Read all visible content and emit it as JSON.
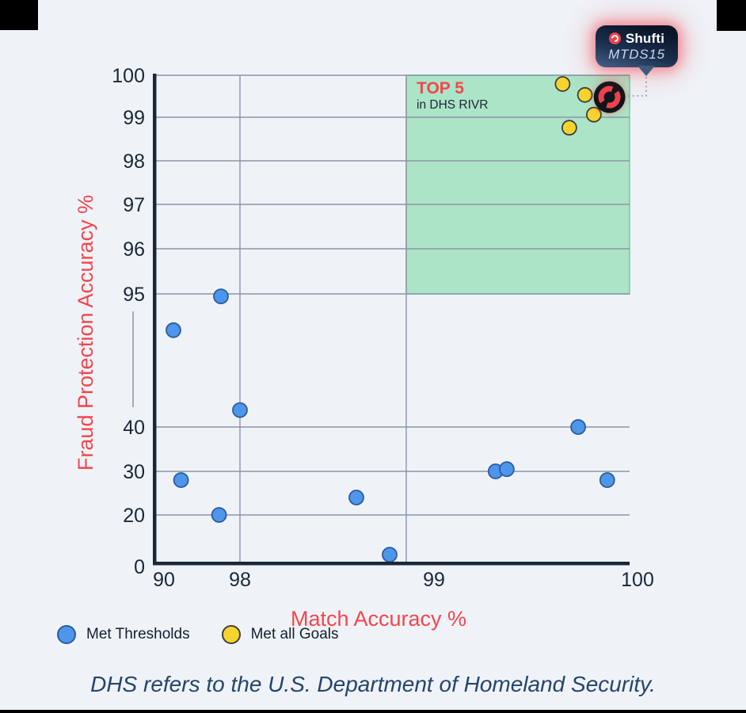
{
  "page": {
    "footnote": "DHS refers to the U.S. Department of Homeland Security."
  },
  "callout": {
    "brand": "Shufti",
    "model": "MTDS15"
  },
  "legend": {
    "items": [
      {
        "label": "Met Thresholds",
        "color": "#4e96ea"
      },
      {
        "label": "Met all Goals",
        "color": "#f6d42e"
      }
    ]
  },
  "colors": {
    "background": "#eff3f8",
    "axis_navy": "#1b2739",
    "accent_red": "#f4464b",
    "zone_green": "#ace4c7",
    "gridline_gray": "#8b95a7",
    "blue_dot": "#4e96ea",
    "yellow_dot": "#f6d42e",
    "marker_black": "#10131b",
    "marker_red": "#f0424d"
  },
  "chart_data": {
    "type": "scatter",
    "title": "",
    "xlabel": "Match Accuracy %",
    "ylabel": "Fraud Protection Accuracy %",
    "x_tick_labels": [
      "90",
      "98",
      "99",
      "100"
    ],
    "y_tick_labels": [
      "100",
      "99",
      "98",
      "97",
      "96",
      "95",
      "40",
      "30",
      "20",
      "0"
    ],
    "x_axis_break": true,
    "y_axis_break": true,
    "grid": true,
    "highlight_zone": {
      "title": "TOP 5",
      "subtitle": "in DHS RIVR",
      "x_range": [
        99,
        100
      ],
      "y_range": [
        95,
        100
      ]
    },
    "series": [
      {
        "name": "Met Thresholds",
        "points": [
          [
            91.0,
            80
          ],
          [
            96.0,
            94
          ],
          [
            98.0,
            47
          ],
          [
            91.8,
            28
          ],
          [
            95.8,
            20
          ],
          [
            98.7,
            24
          ],
          [
            98.9,
            3
          ],
          [
            99.4,
            30
          ],
          [
            99.45,
            30.5
          ],
          [
            99.77,
            40
          ],
          [
            99.9,
            28
          ]
        ]
      },
      {
        "name": "Met all Goals",
        "points": [
          [
            99.7,
            99.8
          ],
          [
            99.8,
            99.55
          ],
          [
            99.84,
            99.1
          ],
          [
            99.73,
            98.8
          ]
        ]
      },
      {
        "name": "Shufti MTDS15",
        "marker": "shufti-logo",
        "points": [
          [
            99.91,
            99.5
          ]
        ]
      }
    ]
  }
}
